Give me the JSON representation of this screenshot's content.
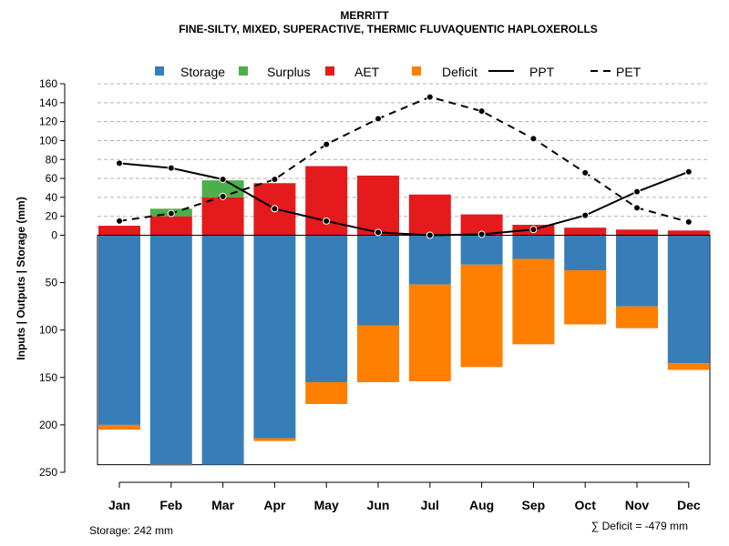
{
  "chart_data": {
    "type": "bar",
    "title": "MERRITT",
    "subtitle": "FINE-SILTY, MIXED, SUPERACTIVE, THERMIC FLUVAQUENTIC HAPLOXEROLLS",
    "ylabel": "Inputs | Outputs | Storage     (mm)",
    "categories": [
      "Jan",
      "Feb",
      "Mar",
      "Apr",
      "May",
      "Jun",
      "Jul",
      "Aug",
      "Sep",
      "Oct",
      "Nov",
      "Dec"
    ],
    "ylim_upper": [
      0,
      160
    ],
    "ylim_lower": [
      0,
      250
    ],
    "upper_ticks": [
      "0",
      "20",
      "40",
      "60",
      "80",
      "100",
      "120",
      "140",
      "160"
    ],
    "lower_ticks": [
      "50",
      "100",
      "150",
      "200",
      "250"
    ],
    "series": [
      {
        "name": "Storage",
        "color": "#377eb8",
        "values": [
          200,
          242,
          242,
          214,
          155,
          95,
          52,
          31,
          25,
          37,
          75,
          135
        ]
      },
      {
        "name": "Surplus",
        "color": "#4daf4a",
        "values": [
          0,
          8,
          18,
          0,
          0,
          0,
          0,
          0,
          0,
          0,
          0,
          0
        ]
      },
      {
        "name": "AET",
        "color": "#e41a1c",
        "values": [
          10,
          20,
          40,
          55,
          73,
          63,
          43,
          22,
          11,
          8,
          6,
          5
        ]
      },
      {
        "name": "Deficit",
        "color": "#ff7f00",
        "values": [
          5,
          1,
          0,
          3,
          23,
          60,
          102,
          108,
          90,
          57,
          23,
          7
        ]
      },
      {
        "name": "PPT",
        "line": "solid",
        "values": [
          76,
          71,
          59,
          28,
          15,
          3,
          0,
          1,
          6,
          21,
          46,
          67
        ]
      },
      {
        "name": "PET",
        "line": "dashed",
        "values": [
          15,
          23,
          41,
          59,
          96,
          123,
          146,
          131,
          102,
          66,
          29,
          14
        ]
      }
    ],
    "legend": [
      "Storage",
      "Surplus",
      "AET",
      "Deficit",
      "PPT",
      "PET"
    ],
    "storage_note": "Storage: 242 mm",
    "deficit_note": "∑ Deficit = -479 mm"
  }
}
